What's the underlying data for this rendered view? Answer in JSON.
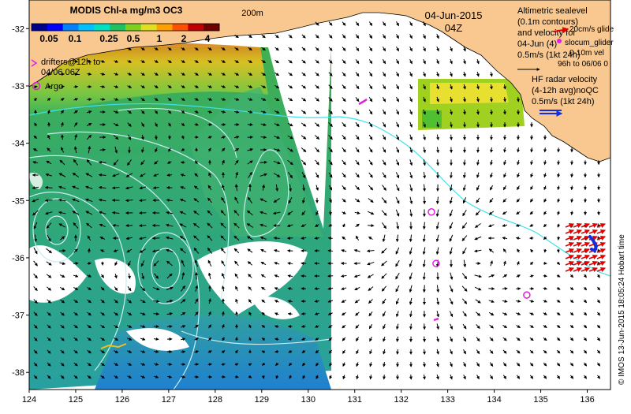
{
  "colorbar": {
    "title": "MODIS Chl-a mg/m3 OC3",
    "ticks": [
      "0.05",
      "0.1",
      "0.25",
      "0.5",
      "1",
      "2",
      "4"
    ],
    "colors": [
      "#00008b",
      "#0000ff",
      "#0080ff",
      "#00c0ff",
      "#00e0c0",
      "#20c060",
      "#80d020",
      "#e0e020",
      "#ffa000",
      "#ff5000",
      "#c00000",
      "#700000"
    ]
  },
  "isobath_label": "200m",
  "date": "04-Jun-2015",
  "time": "04Z",
  "legend": {
    "altimetric": [
      "Altimetric sealevel",
      "(0.1m contours)",
      "and velocity for",
      "04-Jun (4)",
      "0.5m/s (1kt 24h)"
    ],
    "glider_labels": [
      "20cm/s glide",
      "slocum_glider",
      "0-10m vel",
      "96h to 06/06 0"
    ],
    "hf_radar": [
      "HF radar velocity",
      "(4-12h avg)noQC",
      "0.5m/s (1kt 24h)"
    ],
    "drifters": [
      "drifters@12h to",
      "04/06 06Z"
    ],
    "argo": "Argo"
  },
  "credit": "© IMOS 13-Jun-2015 18:05:24 Hobart time",
  "axes": {
    "lon_ticks": [
      124,
      125,
      126,
      127,
      128,
      129,
      130,
      131,
      132,
      133,
      134,
      135,
      136
    ],
    "lat_ticks": [
      -32,
      -33,
      -34,
      -35,
      -36,
      -37,
      -38
    ],
    "lon_range": [
      124,
      136.5
    ],
    "lat_range": [
      -38.3,
      -31.5
    ]
  },
  "argo_floats": [
    [
      132.65,
      -35.2
    ],
    [
      132.75,
      -36.1
    ],
    [
      134.7,
      -36.65
    ]
  ],
  "colors": {
    "land": "#f8c890",
    "contour": "#c8ecf0",
    "isobath": "#40e0e8",
    "argo": "#e020e0",
    "hf_radar": "#e00000",
    "arrow": "#000000"
  }
}
